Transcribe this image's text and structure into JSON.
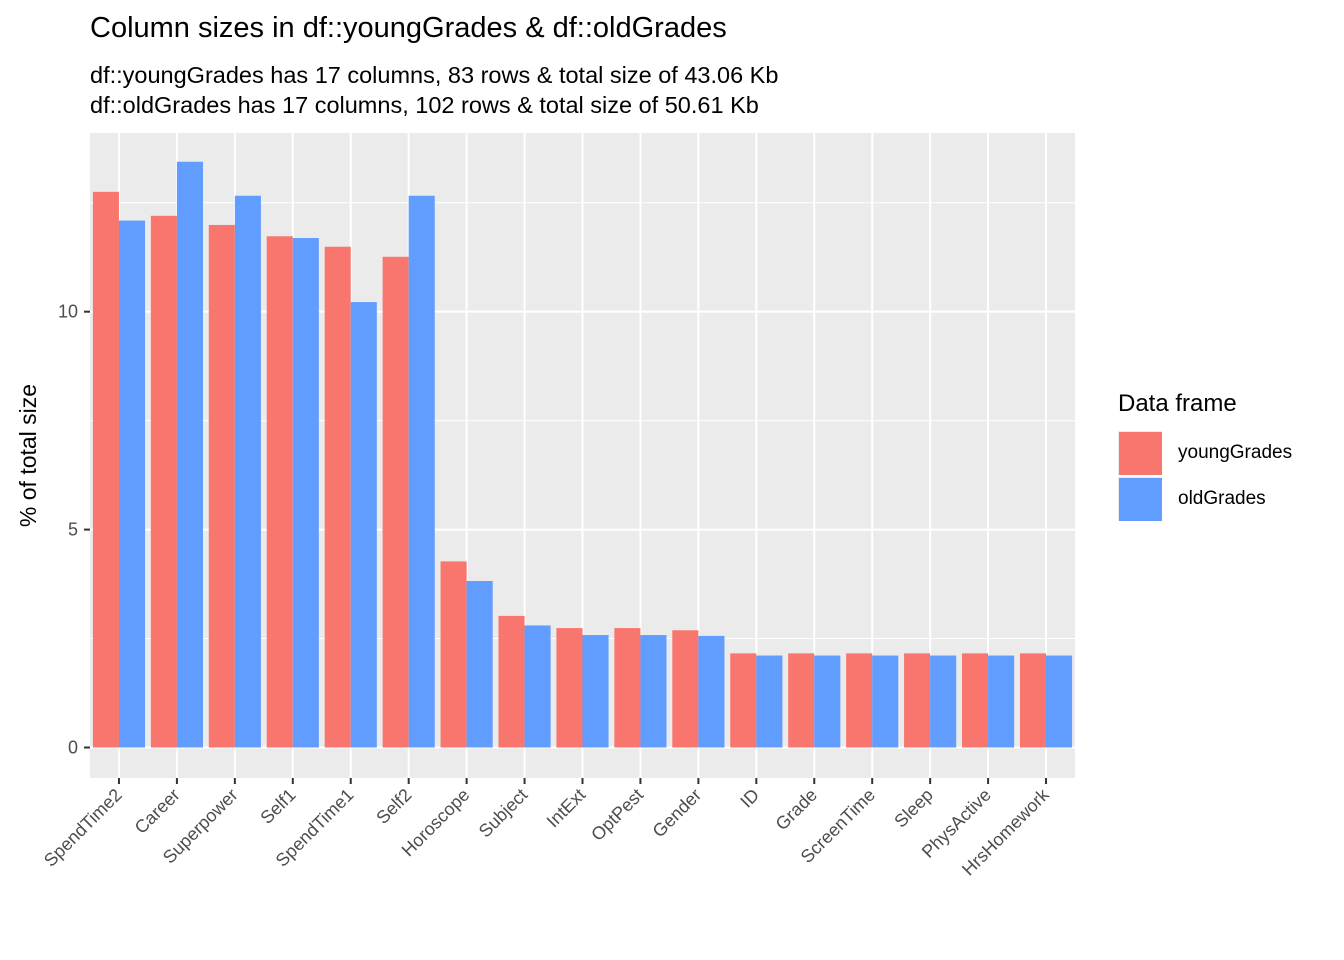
{
  "chart_data": {
    "type": "bar",
    "title": "Column sizes in df::youngGrades & df::oldGrades",
    "subtitle_lines": [
      "df::youngGrades has 17 columns, 83 rows & total size of 43.06 Kb",
      "df::oldGrades has 17 columns, 102 rows & total size of 50.61 Kb"
    ],
    "xlabel": "",
    "ylabel": "% of total size",
    "ylim": [
      -0.7,
      14.1
    ],
    "yticks": [
      0,
      5,
      10
    ],
    "grid": true,
    "legend": {
      "title": "Data frame",
      "placement": "right"
    },
    "categories": [
      "SpendTime2",
      "Career",
      "Superpower",
      "Self1",
      "SpendTime1",
      "Self2",
      "Horoscope",
      "Subject",
      "IntExt",
      "OptPest",
      "Gender",
      "ID",
      "Grade",
      "ScreenTime",
      "Sleep",
      "PhysActive",
      "HrsHomework"
    ],
    "series": [
      {
        "name": "youngGrades",
        "color": "#F8766D",
        "values": [
          12.75,
          12.2,
          11.99,
          11.73,
          11.49,
          11.26,
          4.27,
          3.02,
          2.74,
          2.74,
          2.69,
          2.16,
          2.16,
          2.16,
          2.16,
          2.16,
          2.16
        ]
      },
      {
        "name": "oldGrades",
        "color": "#619CFF",
        "values": [
          12.09,
          13.44,
          12.66,
          11.69,
          10.22,
          12.66,
          3.82,
          2.8,
          2.58,
          2.58,
          2.56,
          2.11,
          2.11,
          2.11,
          2.11,
          2.11,
          2.11
        ]
      }
    ]
  }
}
